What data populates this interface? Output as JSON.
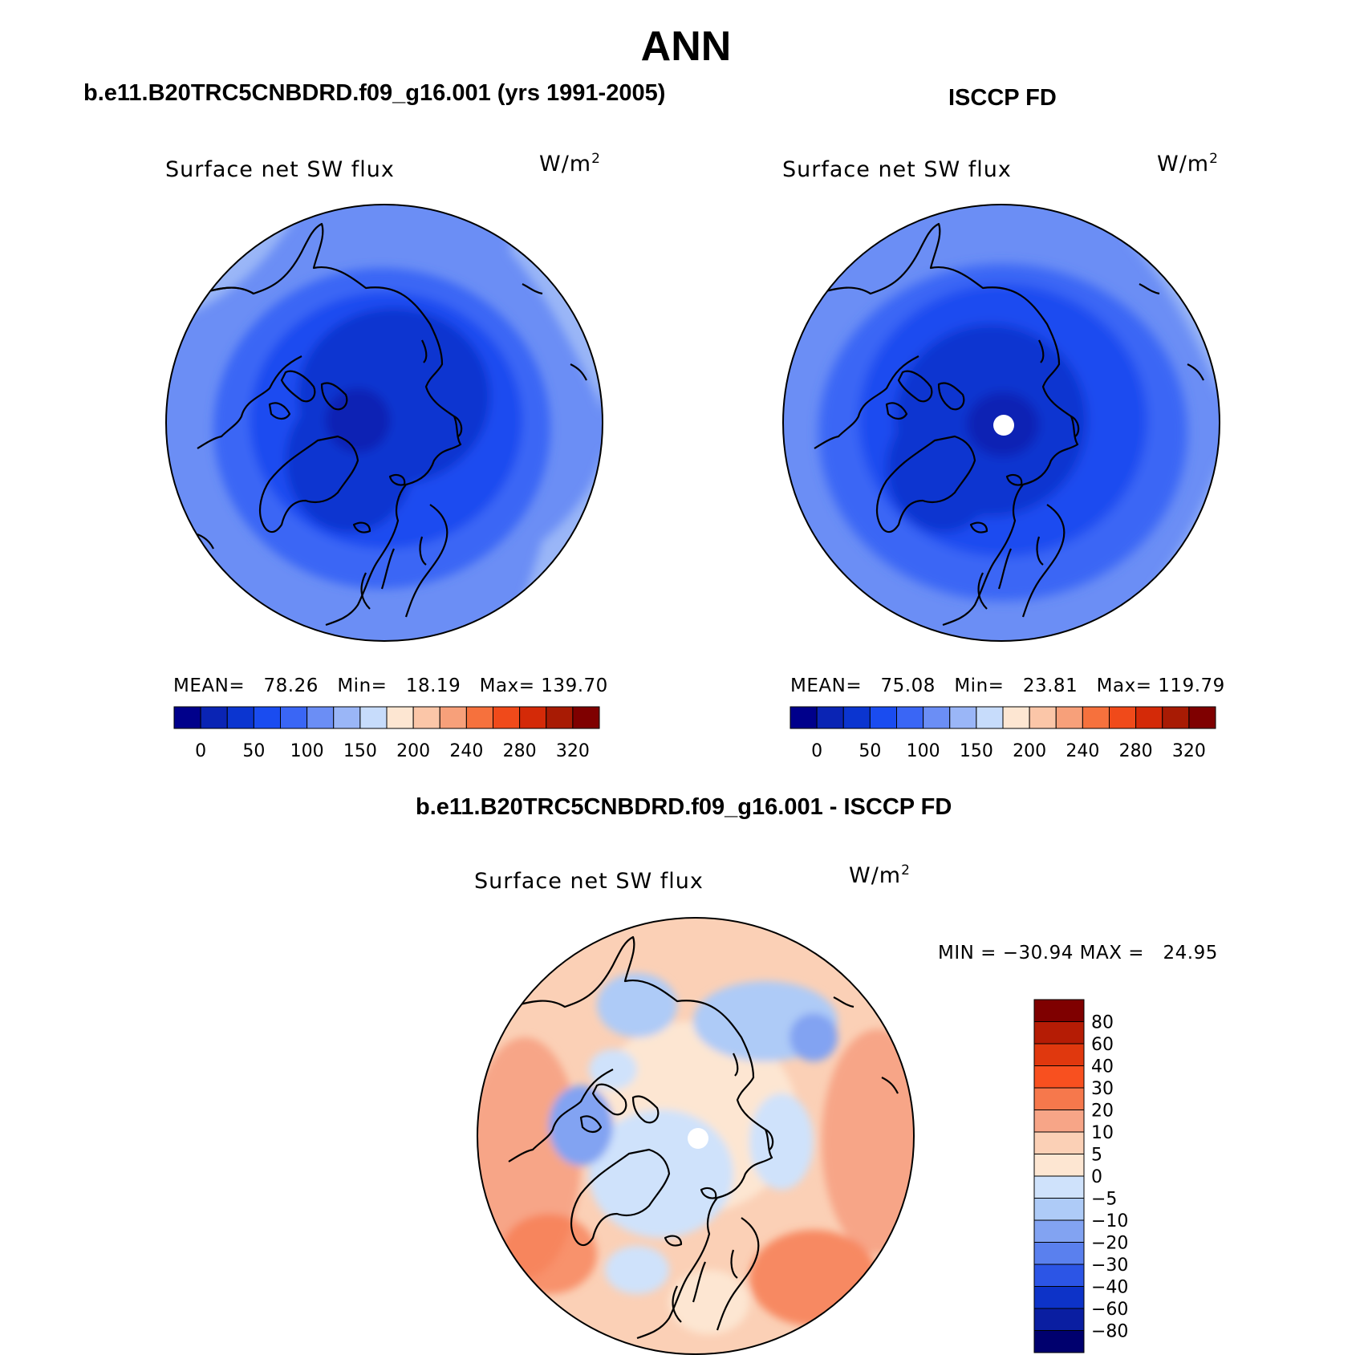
{
  "header": {
    "title": "ANN"
  },
  "panels": [
    {
      "case_label": "b.e11.B20TRC5CNBDRD.f09_g16.001 (yrs 1991-2005)",
      "plot_title": "Surface net SW flux",
      "units": "W/m",
      "units_exp": "2",
      "stats": {
        "mean_label": "MEAN=",
        "mean": "78.26",
        "min_label": "Min=",
        "min": "18.19",
        "max_label": "Max=",
        "max": "139.70"
      }
    },
    {
      "case_label": "ISCCP FD",
      "plot_title": "Surface net SW flux",
      "units": "W/m",
      "units_exp": "2",
      "stats": {
        "mean_label": "MEAN=",
        "mean": "75.08",
        "min_label": "Min=",
        "min": "23.81",
        "max_label": "Max=",
        "max": "119.79"
      }
    }
  ],
  "diff_panel": {
    "case_label": "b.e11.B20TRC5CNBDRD.f09_g16.001 - ISCCP FD",
    "plot_title": "Surface net SW flux",
    "units": "W/m",
    "units_exp": "2",
    "minmax": "MIN = −30.94 MAX =   24.95"
  },
  "colorbar_abs": {
    "colors": [
      "#00008b",
      "#0a24b4",
      "#0b35d0",
      "#1a4cf0",
      "#3a66f5",
      "#6b8ef5",
      "#9ab6f7",
      "#c7dcfb",
      "#fde6d2",
      "#fbc6a8",
      "#f7a07a",
      "#f6713d",
      "#f04a1a",
      "#d42a08",
      "#a81b04",
      "#7f0000"
    ],
    "tick_labels": [
      "0",
      "50",
      "100",
      "150",
      "200",
      "240",
      "280",
      "320"
    ]
  },
  "colorbar_diff": {
    "colors": [
      "#7f0000",
      "#b51c05",
      "#e0380e",
      "#f8501f",
      "#f6784c",
      "#f7a587",
      "#fbd0b6",
      "#fde6d2",
      "#cfe2fb",
      "#aecbf7",
      "#82a3f2",
      "#5a80ee",
      "#2c55e6",
      "#0d33c8",
      "#0a1ea1",
      "#00006e"
    ],
    "tick_labels": [
      "80",
      "60",
      "40",
      "30",
      "20",
      "10",
      "5",
      "0",
      "−5",
      "−10",
      "−20",
      "−30",
      "−40",
      "−60",
      "−80"
    ]
  }
}
